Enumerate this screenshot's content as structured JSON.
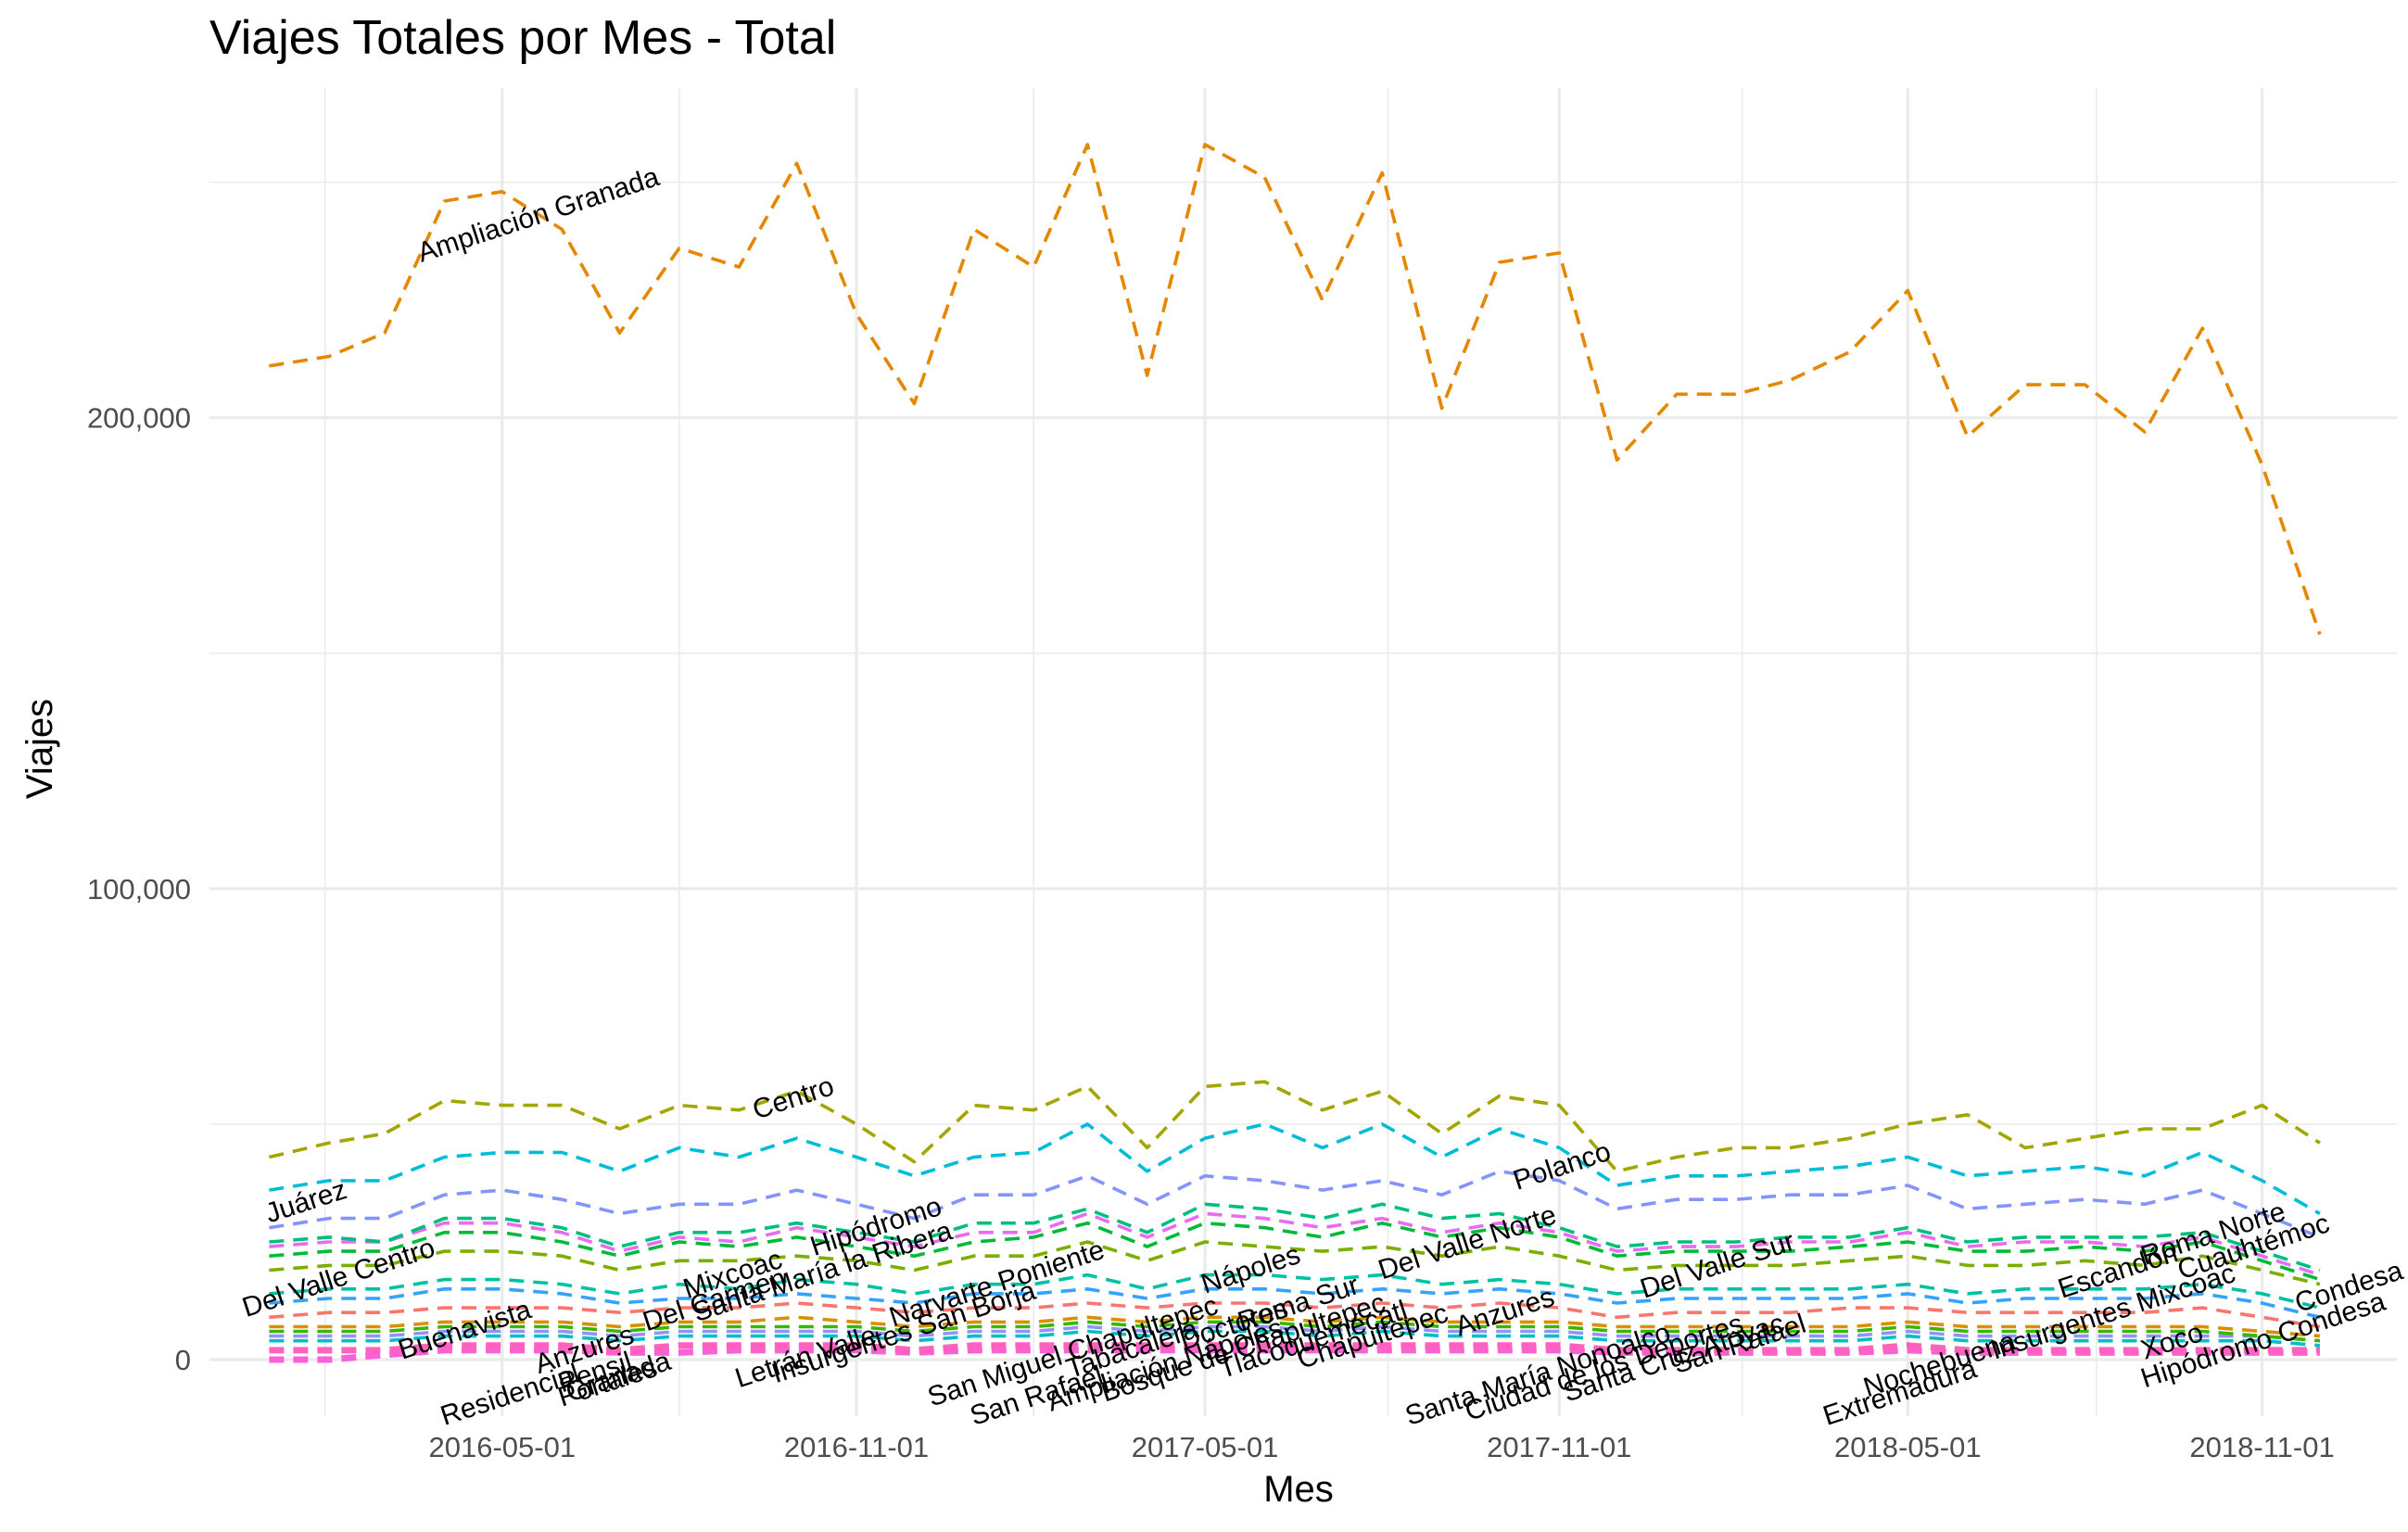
{
  "chart_data": {
    "type": "line",
    "title": "Viajes Totales por Mes - Total",
    "xlabel": "Mes",
    "ylabel": "Viajes",
    "x_start": "2016-01-01",
    "x_end": "2018-12-01",
    "xlim": [
      "2015-12-01",
      "2019-01-10"
    ],
    "ylim": [
      -12000,
      270000
    ],
    "x_ticks": [
      "2016-05-01",
      "2016-11-01",
      "2017-05-01",
      "2017-11-01",
      "2018-05-01",
      "2018-11-01"
    ],
    "y_ticks": [
      {
        "value": 0,
        "label": "0"
      },
      {
        "value": 100000,
        "label": "100,000"
      },
      {
        "value": 200000,
        "label": "200,000"
      }
    ],
    "grid": true,
    "line_style": "dashed",
    "series": [
      {
        "name": "Ampliación Granada",
        "color": "#E58700",
        "values": [
          211000,
          213000,
          218000,
          246000,
          248000,
          240000,
          218000,
          236000,
          232000,
          254000,
          222000,
          203000,
          240000,
          232000,
          258000,
          209000,
          258000,
          251000,
          225000,
          252000,
          202000,
          233000,
          235000,
          191000,
          205000,
          205000,
          208000,
          214000,
          227000,
          196000,
          207000,
          207000,
          197000,
          219000,
          190000,
          154000
        ]
      },
      {
        "name": "Centro",
        "color": "#A3A500",
        "values": [
          43000,
          46000,
          48000,
          55000,
          54000,
          54000,
          49000,
          54000,
          53000,
          57000,
          50000,
          42000,
          54000,
          53000,
          58000,
          45000,
          58000,
          59000,
          53000,
          57000,
          48000,
          56000,
          54000,
          40000,
          43000,
          45000,
          45000,
          47000,
          50000,
          52000,
          45000,
          47000,
          49000,
          49000,
          54000,
          46000
        ]
      },
      {
        "name": "Polanco",
        "color": "#00BCD8",
        "values": [
          36000,
          38000,
          38000,
          43000,
          44000,
          44000,
          40000,
          45000,
          43000,
          47000,
          43000,
          39000,
          43000,
          44000,
          50000,
          40000,
          47000,
          50000,
          45000,
          50000,
          43000,
          49000,
          45000,
          37000,
          39000,
          39000,
          40000,
          41000,
          43000,
          39000,
          40000,
          41000,
          39000,
          44000,
          38000,
          31000
        ]
      },
      {
        "name": "Juárez",
        "color": "#8494FF",
        "values": [
          28000,
          30000,
          30000,
          35000,
          36000,
          34000,
          31000,
          33000,
          33000,
          36000,
          33000,
          30000,
          35000,
          35000,
          39000,
          33000,
          39000,
          38000,
          36000,
          38000,
          35000,
          40000,
          38000,
          32000,
          34000,
          34000,
          35000,
          35000,
          37000,
          32000,
          33000,
          34000,
          33000,
          36000,
          31000,
          26000
        ]
      },
      {
        "name": "Del Valle Centro",
        "color": "#00BF7D",
        "values": [
          25000,
          26000,
          25000,
          30000,
          30000,
          28000,
          24000,
          27000,
          27000,
          29000,
          27000,
          25000,
          29000,
          29000,
          32000,
          27000,
          33000,
          32000,
          30000,
          33000,
          30000,
          31000,
          28000,
          24000,
          25000,
          25000,
          26000,
          26000,
          28000,
          25000,
          26000,
          26000,
          26000,
          27000,
          23000,
          19000
        ]
      },
      {
        "name": "Del Valle Norte",
        "color": "#00BA38",
        "values": [
          22000,
          23000,
          23000,
          27000,
          27000,
          25000,
          22000,
          25000,
          24000,
          26000,
          24000,
          22000,
          25000,
          26000,
          29000,
          24000,
          29000,
          28000,
          26000,
          29000,
          26000,
          28000,
          26000,
          22000,
          23000,
          23000,
          23000,
          24000,
          25000,
          23000,
          23000,
          24000,
          23000,
          25000,
          21000,
          17000
        ]
      },
      {
        "name": "Del Valle Sur",
        "color": "#7CAE00",
        "values": [
          19000,
          20000,
          20000,
          23000,
          23000,
          22000,
          19000,
          21000,
          21000,
          22000,
          21000,
          19000,
          22000,
          22000,
          25000,
          21000,
          25000,
          24000,
          23000,
          24000,
          22000,
          24000,
          22000,
          19000,
          20000,
          20000,
          20000,
          21000,
          22000,
          20000,
          20000,
          21000,
          20000,
          22000,
          19000,
          16000
        ]
      },
      {
        "name": "Hipódromo",
        "color": "#E76BF3",
        "values": [
          24000,
          25000,
          25000,
          29000,
          29000,
          27000,
          23000,
          26000,
          25000,
          28000,
          26000,
          24000,
          27000,
          27000,
          31000,
          26000,
          31000,
          30000,
          28000,
          30000,
          27000,
          29000,
          27000,
          23000,
          24000,
          24000,
          25000,
          25000,
          27000,
          24000,
          25000,
          25000,
          24000,
          26000,
          22000,
          18000
        ]
      },
      {
        "name": "Cuauhtémoc",
        "color": "#00C1A3",
        "values": [
          14000,
          15000,
          15000,
          17000,
          17000,
          16000,
          14000,
          16000,
          15000,
          17000,
          16000,
          14000,
          16000,
          16000,
          18000,
          15000,
          18000,
          18000,
          17000,
          18000,
          16000,
          17000,
          16000,
          14000,
          15000,
          15000,
          15000,
          15000,
          16000,
          14000,
          15000,
          15000,
          15000,
          16000,
          14000,
          11000
        ]
      },
      {
        "name": "Roma Norte",
        "color": "#35A2FF",
        "values": [
          12000,
          13000,
          13000,
          15000,
          15000,
          14000,
          12000,
          13000,
          13000,
          14000,
          13000,
          12000,
          14000,
          14000,
          15000,
          13000,
          15000,
          15000,
          14000,
          15000,
          14000,
          15000,
          14000,
          12000,
          13000,
          13000,
          13000,
          13000,
          14000,
          12000,
          13000,
          13000,
          13000,
          14000,
          12000,
          9000
        ]
      },
      {
        "name": "Condesa",
        "color": "#F8766D",
        "values": [
          9000,
          10000,
          10000,
          11000,
          11000,
          11000,
          10000,
          11000,
          11000,
          12000,
          11000,
          10000,
          11000,
          11000,
          12000,
          11000,
          12000,
          12000,
          11000,
          12000,
          11000,
          12000,
          11000,
          9000,
          10000,
          10000,
          10000,
          11000,
          11000,
          10000,
          10000,
          10000,
          10000,
          11000,
          9000,
          7000
        ]
      },
      {
        "name": "Tabacalera",
        "color": "#D89000",
        "values": [
          7000,
          7000,
          7000,
          8000,
          8000,
          8000,
          7000,
          8000,
          8000,
          9000,
          8000,
          7000,
          8000,
          8000,
          9000,
          8000,
          9000,
          9000,
          8000,
          9000,
          8000,
          8000,
          8000,
          7000,
          7000,
          7000,
          7000,
          7000,
          8000,
          7000,
          7000,
          7000,
          7000,
          7000,
          6000,
          5000
        ]
      },
      {
        "name": "San Rafael",
        "color": "#39B600",
        "values": [
          6000,
          6000,
          6000,
          7000,
          7000,
          7000,
          6000,
          7000,
          7000,
          7000,
          7000,
          6000,
          7000,
          7000,
          8000,
          7000,
          8000,
          8000,
          7000,
          8000,
          7000,
          7000,
          7000,
          6000,
          6000,
          6000,
          6000,
          6000,
          7000,
          6000,
          6000,
          6000,
          6000,
          6000,
          5000,
          4000
        ]
      },
      {
        "name": "Nápoles",
        "color": "#9590FF",
        "values": [
          5000,
          5000,
          5000,
          6000,
          6000,
          6000,
          5000,
          6000,
          6000,
          6000,
          6000,
          5000,
          6000,
          6000,
          7000,
          6000,
          7000,
          7000,
          6000,
          7000,
          6000,
          6000,
          6000,
          5000,
          5000,
          5000,
          5000,
          5000,
          6000,
          5000,
          5000,
          5000,
          5000,
          5000,
          5000,
          4000
        ]
      },
      {
        "name": "Escandón",
        "color": "#00BFC4",
        "values": [
          4000,
          4000,
          4000,
          5000,
          5000,
          5000,
          4000,
          5000,
          5000,
          5000,
          5000,
          4000,
          5000,
          5000,
          6000,
          5000,
          6000,
          6000,
          5000,
          6000,
          5000,
          5000,
          5000,
          4000,
          4000,
          4000,
          4000,
          4000,
          5000,
          4000,
          4000,
          4000,
          4000,
          4000,
          4000,
          3000
        ]
      },
      {
        "name": "Narvarte Poniente",
        "color": "#FF62BC",
        "values": [
          2000,
          2000,
          2000,
          3000,
          3000,
          3000,
          2000,
          3000,
          3000,
          3000,
          3000,
          2000,
          3000,
          3000,
          3000,
          3000,
          3000,
          3000,
          3000,
          3000,
          3000,
          3000,
          3000,
          2000,
          2000,
          2000,
          2000,
          2000,
          3000,
          2000,
          2000,
          2000,
          2000,
          2000,
          2000,
          2000
        ]
      },
      {
        "name": "Residencial",
        "color": "#FB61D7",
        "values": [
          0,
          0,
          1000,
          2000,
          2000,
          2000,
          1500,
          1500,
          2000,
          2000,
          2000,
          1500,
          2000,
          2000,
          2000,
          2000,
          2000,
          2000,
          2000,
          2000,
          2000,
          2000,
          2000,
          1500,
          1500,
          1500,
          1500,
          1500,
          2000,
          1500,
          1500,
          1500,
          1500,
          1500,
          1500,
          1500
        ]
      }
    ],
    "annotations": [
      {
        "text": "Ampliación Granada",
        "x": "2016-03-20",
        "y": 233000,
        "rotate": -18
      },
      {
        "text": "Centro",
        "x": "2016-09-10",
        "y": 51000,
        "rotate": -18
      },
      {
        "text": "Juárez",
        "x": "2016-01-01",
        "y": 29000,
        "rotate": -18
      },
      {
        "text": "Del Valle Centro",
        "x": "2015-12-20",
        "y": 9000,
        "rotate": -18
      },
      {
        "text": "Buenavista",
        "x": "2016-03-10",
        "y": 0,
        "rotate": -18
      },
      {
        "text": "Residencial",
        "x": "2016-04-01",
        "y": -14000,
        "rotate": -18
      },
      {
        "text": "Anzures",
        "x": "2016-05-20",
        "y": -3000,
        "rotate": -18
      },
      {
        "text": "Pensil",
        "x": "2016-06-01",
        "y": -7000,
        "rotate": -18
      },
      {
        "text": "Portales",
        "x": "2016-06-01",
        "y": -10000,
        "rotate": -18
      },
      {
        "text": "Granada",
        "x": "2016-06-05",
        "y": -9000,
        "rotate": -18
      },
      {
        "text": "Mixcoac",
        "x": "2016-08-05",
        "y": 13000,
        "rotate": -18
      },
      {
        "text": "Del Carmen",
        "x": "2016-07-15",
        "y": 6000,
        "rotate": -18
      },
      {
        "text": "Hipódromo",
        "x": "2016-10-10",
        "y": 22000,
        "rotate": -18
      },
      {
        "text": "Santa María la Ribera",
        "x": "2016-08-10",
        "y": 8000,
        "rotate": -18
      },
      {
        "text": "Narvarte Poniente",
        "x": "2016-11-20",
        "y": 7000,
        "rotate": -18
      },
      {
        "text": "Letrán Valle",
        "x": "2016-09-01",
        "y": -6000,
        "rotate": -18
      },
      {
        "text": "Insurgentes San Borja",
        "x": "2016-09-20",
        "y": -5000,
        "rotate": -18
      },
      {
        "text": "San Miguel Chapultepec",
        "x": "2016-12-10",
        "y": -10000,
        "rotate": -18
      },
      {
        "text": "Nápoles",
        "x": "2017-05-01",
        "y": 14000,
        "rotate": -18
      },
      {
        "text": "Tabacalera",
        "x": "2017-02-20",
        "y": -4000,
        "rotate": -18
      },
      {
        "text": "San Rafael",
        "x": "2017-01-01",
        "y": -14000,
        "rotate": -18
      },
      {
        "text": "Ampliación Nápoles",
        "x": "2017-02-10",
        "y": -11000,
        "rotate": -18
      },
      {
        "text": "Bosque de Chapultepec",
        "x": "2017-03-10",
        "y": -9000,
        "rotate": -18
      },
      {
        "text": "Roma Sur",
        "x": "2017-05-20",
        "y": 6000,
        "rotate": -18
      },
      {
        "text": "Doctores",
        "x": "2017-04-20",
        "y": 2000,
        "rotate": -18
      },
      {
        "text": "Tlacoquemécatl",
        "x": "2017-05-10",
        "y": -4000,
        "rotate": -18
      },
      {
        "text": "Chapultepec",
        "x": "2017-06-20",
        "y": -2000,
        "rotate": -18
      },
      {
        "text": "Del Valle Norte",
        "x": "2017-08-01",
        "y": 17000,
        "rotate": -18
      },
      {
        "text": "Anzures",
        "x": "2017-09-10",
        "y": 5000,
        "rotate": -18
      },
      {
        "text": "Polanco",
        "x": "2017-10-10",
        "y": 36000,
        "rotate": -18
      },
      {
        "text": "Santa María Nonoalco",
        "x": "2017-08-15",
        "y": -14000,
        "rotate": -18
      },
      {
        "text": "Ciudad de los Deportes",
        "x": "2017-09-15",
        "y": -13000,
        "rotate": -18
      },
      {
        "text": "Santa Cruz Atoyac",
        "x": "2017-11-05",
        "y": -9000,
        "rotate": -18
      },
      {
        "text": "Del Valle Sur",
        "x": "2017-12-15",
        "y": 13000,
        "rotate": -18
      },
      {
        "text": "San Rafael",
        "x": "2018-01-01",
        "y": -3000,
        "rotate": -18
      },
      {
        "text": "Extremadura",
        "x": "2018-03-20",
        "y": -14000,
        "rotate": -18
      },
      {
        "text": "Nochebuena",
        "x": "2018-04-10",
        "y": -8000,
        "rotate": -18
      },
      {
        "text": "Insurgentes Mixcoac",
        "x": "2018-06-15",
        "y": 0,
        "rotate": -18
      },
      {
        "text": "Escandón",
        "x": "2018-07-20",
        "y": 13000,
        "rotate": -18
      },
      {
        "text": "Roma Norte",
        "x": "2018-09-01",
        "y": 20000,
        "rotate": -18
      },
      {
        "text": "Cuauhtémoc",
        "x": "2018-09-20",
        "y": 17000,
        "rotate": -18
      },
      {
        "text": "Condesa",
        "x": "2018-11-20",
        "y": 10000,
        "rotate": -18
      },
      {
        "text": "Xoco",
        "x": "2018-09-01",
        "y": 0,
        "rotate": -18
      },
      {
        "text": "Hipódromo Condesa",
        "x": "2018-09-01",
        "y": -6000,
        "rotate": -18
      }
    ]
  }
}
